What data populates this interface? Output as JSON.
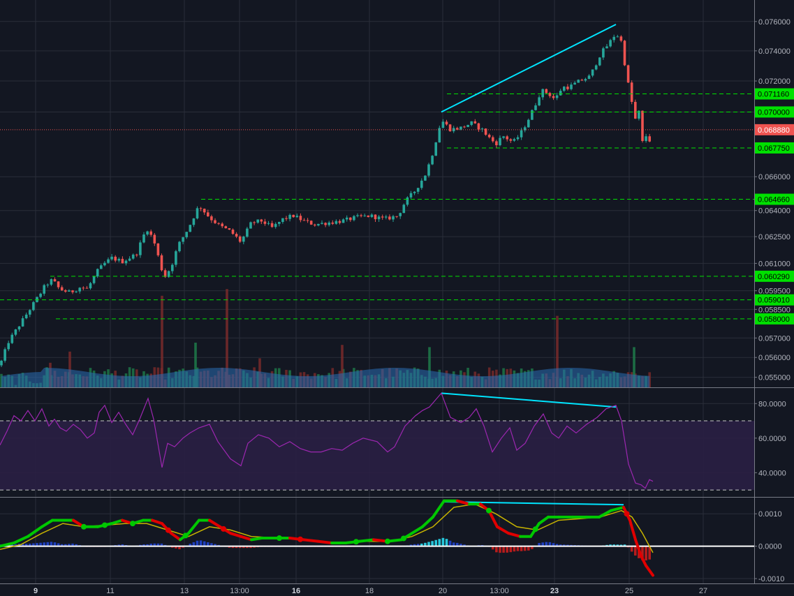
{
  "chart_data": [
    {
      "type": "candlestick",
      "panel": "price",
      "y_ticks": [
        "0.076000",
        "0.074000",
        "0.072000",
        "0.070000",
        "0.066000",
        "0.064000",
        "0.062500",
        "0.061000",
        "0.059500",
        "0.058500",
        "0.057000",
        "0.056000",
        "0.055000"
      ],
      "y_tick_values": [
        0.076,
        0.074,
        0.072,
        0.07,
        0.066,
        0.064,
        0.0625,
        0.061,
        0.0595,
        0.0585,
        0.057,
        0.056,
        0.055
      ],
      "scale": "log",
      "ylim": [
        0.0545,
        0.0775
      ],
      "close_path": [
        [
          0,
          0.0556
        ],
        [
          12,
          0.0568
        ],
        [
          30,
          0.0578
        ],
        [
          55,
          0.0592
        ],
        [
          65,
          0.0598
        ],
        [
          75,
          0.0601
        ],
        [
          85,
          0.0596
        ],
        [
          100,
          0.0594
        ],
        [
          115,
          0.0597
        ],
        [
          125,
          0.0596
        ],
        [
          140,
          0.0606
        ],
        [
          150,
          0.061
        ],
        [
          160,
          0.0613
        ],
        [
          175,
          0.0611
        ],
        [
          195,
          0.0615
        ],
        [
          210,
          0.063
        ],
        [
          220,
          0.0623
        ],
        [
          235,
          0.0602
        ],
        [
          245,
          0.0608
        ],
        [
          255,
          0.062
        ],
        [
          270,
          0.063
        ],
        [
          285,
          0.0643
        ],
        [
          300,
          0.0636
        ],
        [
          315,
          0.0631
        ],
        [
          330,
          0.0628
        ],
        [
          345,
          0.0622
        ],
        [
          360,
          0.0633
        ],
        [
          375,
          0.0634
        ],
        [
          390,
          0.063
        ],
        [
          405,
          0.0635
        ],
        [
          420,
          0.0637
        ],
        [
          435,
          0.0634
        ],
        [
          450,
          0.0632
        ],
        [
          470,
          0.0633
        ],
        [
          490,
          0.0634
        ],
        [
          510,
          0.0636
        ],
        [
          530,
          0.0637
        ],
        [
          550,
          0.0635
        ],
        [
          570,
          0.0637
        ],
        [
          580,
          0.0645
        ],
        [
          595,
          0.0652
        ],
        [
          610,
          0.0662
        ],
        [
          620,
          0.0675
        ],
        [
          632,
          0.0695
        ],
        [
          645,
          0.0689
        ],
        [
          660,
          0.069
        ],
        [
          675,
          0.0693
        ],
        [
          690,
          0.0689
        ],
        [
          700,
          0.0684
        ],
        [
          710,
          0.068
        ],
        [
          720,
          0.0685
        ],
        [
          735,
          0.0681
        ],
        [
          745,
          0.0686
        ],
        [
          755,
          0.0694
        ],
        [
          765,
          0.0703
        ],
        [
          775,
          0.0714
        ],
        [
          785,
          0.0712
        ],
        [
          795,
          0.0708
        ],
        [
          805,
          0.0716
        ],
        [
          815,
          0.0716
        ],
        [
          830,
          0.072
        ],
        [
          845,
          0.0723
        ],
        [
          860,
          0.0738
        ],
        [
          872,
          0.0745
        ],
        [
          882,
          0.0752
        ],
        [
          890,
          0.0746
        ],
        [
          896,
          0.0727
        ],
        [
          902,
          0.0712
        ],
        [
          910,
          0.0695
        ],
        [
          915,
          0.07
        ],
        [
          920,
          0.0681
        ],
        [
          925,
          0.0685
        ],
        [
          930,
          0.0682
        ],
        [
          935,
          0.0688
        ]
      ],
      "volume_spikes": [
        [
          67,
          0.9
        ],
        [
          72,
          1.1
        ],
        [
          100,
          1.6
        ],
        [
          232,
          4.1
        ],
        [
          280,
          2.0
        ],
        [
          325,
          4.4
        ],
        [
          372,
          1.3
        ],
        [
          490,
          1.9
        ],
        [
          615,
          1.8
        ],
        [
          798,
          3.2
        ],
        [
          908,
          1.8
        ]
      ],
      "price_lines": [
        {
          "label": "0.071160",
          "value": 0.07116,
          "x_from": 640
        },
        {
          "label": "0.070000",
          "value": 0.07,
          "x_from": 640
        },
        {
          "label": "0.067750",
          "value": 0.06775,
          "x_from": 640
        },
        {
          "label": "0.064660",
          "value": 0.06466,
          "x_from": 288
        },
        {
          "label": "0.060290",
          "value": 0.06029,
          "x_from": 72
        },
        {
          "label": "0.059010",
          "value": 0.05901,
          "x_from": 0
        },
        {
          "label": "0.058000",
          "value": 0.058,
          "x_from": 80
        }
      ],
      "current_price": {
        "label": "0.068880",
        "value": 0.06888
      },
      "trend_line": {
        "from": [
          632,
          0.07
        ],
        "to": [
          882,
          0.0758
        ]
      }
    },
    {
      "type": "line",
      "panel": "rsi",
      "y_ticks": [
        "80.0000",
        "60.0000",
        "40.0000"
      ],
      "y_tick_values": [
        80,
        60,
        40
      ],
      "ylim": [
        26,
        89
      ],
      "bands": [
        70,
        30
      ],
      "values": [
        [
          0,
          56
        ],
        [
          10,
          64
        ],
        [
          20,
          73
        ],
        [
          30,
          70
        ],
        [
          40,
          76
        ],
        [
          50,
          70
        ],
        [
          60,
          77
        ],
        [
          70,
          67
        ],
        [
          78,
          71
        ],
        [
          86,
          66
        ],
        [
          95,
          64
        ],
        [
          105,
          68
        ],
        [
          115,
          65
        ],
        [
          125,
          60
        ],
        [
          135,
          63
        ],
        [
          142,
          75
        ],
        [
          150,
          79
        ],
        [
          160,
          69
        ],
        [
          170,
          75
        ],
        [
          180,
          68
        ],
        [
          190,
          62
        ],
        [
          200,
          71
        ],
        [
          212,
          83
        ],
        [
          220,
          71
        ],
        [
          232,
          43
        ],
        [
          240,
          57
        ],
        [
          250,
          55
        ],
        [
          262,
          60
        ],
        [
          272,
          63
        ],
        [
          285,
          66
        ],
        [
          300,
          68
        ],
        [
          312,
          58
        ],
        [
          330,
          48
        ],
        [
          345,
          44
        ],
        [
          355,
          57
        ],
        [
          370,
          62
        ],
        [
          385,
          60
        ],
        [
          400,
          55
        ],
        [
          415,
          58
        ],
        [
          430,
          54
        ],
        [
          445,
          52
        ],
        [
          460,
          52
        ],
        [
          475,
          54
        ],
        [
          490,
          53
        ],
        [
          505,
          57
        ],
        [
          520,
          60
        ],
        [
          540,
          58
        ],
        [
          555,
          52
        ],
        [
          565,
          55
        ],
        [
          580,
          67
        ],
        [
          595,
          73
        ],
        [
          605,
          76
        ],
        [
          615,
          78
        ],
        [
          632,
          86
        ],
        [
          645,
          72
        ],
        [
          660,
          69
        ],
        [
          672,
          72
        ],
        [
          682,
          77
        ],
        [
          693,
          67
        ],
        [
          705,
          52
        ],
        [
          718,
          60
        ],
        [
          730,
          66
        ],
        [
          740,
          53
        ],
        [
          752,
          57
        ],
        [
          765,
          67
        ],
        [
          778,
          74
        ],
        [
          790,
          63
        ],
        [
          800,
          60
        ],
        [
          812,
          67
        ],
        [
          825,
          63
        ],
        [
          840,
          68
        ],
        [
          855,
          72
        ],
        [
          868,
          77
        ],
        [
          882,
          79
        ],
        [
          890,
          70
        ],
        [
          900,
          45
        ],
        [
          910,
          34
        ],
        [
          918,
          33
        ],
        [
          924,
          31
        ],
        [
          930,
          36
        ],
        [
          935,
          35
        ]
      ],
      "divergence_line": {
        "from": [
          632,
          86
        ],
        "to": [
          882,
          78
        ]
      }
    },
    {
      "type": "macd",
      "panel": "macd",
      "y_ticks": [
        "0.0010",
        "0.0000",
        "-0.0010"
      ],
      "y_tick_values": [
        0.001,
        0,
        -0.001
      ],
      "ylim": [
        -0.00115,
        0.0015
      ],
      "macd_line": [
        [
          0,
          0.0
        ],
        [
          20,
          0.0001
        ],
        [
          40,
          0.0003
        ],
        [
          60,
          0.0006
        ],
        [
          75,
          0.0008
        ],
        [
          90,
          0.0008
        ],
        [
          105,
          0.0008
        ],
        [
          120,
          0.0006
        ],
        [
          140,
          0.0006
        ],
        [
          160,
          0.0007
        ],
        [
          175,
          0.0008
        ],
        [
          190,
          0.0007
        ],
        [
          205,
          0.0008
        ],
        [
          218,
          0.0008
        ],
        [
          232,
          0.0007
        ],
        [
          245,
          0.0004
        ],
        [
          258,
          0.0002
        ],
        [
          270,
          0.0004
        ],
        [
          285,
          0.0008
        ],
        [
          300,
          0.0008
        ],
        [
          315,
          0.0006
        ],
        [
          330,
          0.0004
        ],
        [
          345,
          0.0003
        ],
        [
          360,
          0.0002
        ],
        [
          375,
          0.00025
        ],
        [
          395,
          0.00025
        ],
        [
          415,
          0.00025
        ],
        [
          435,
          0.0002
        ],
        [
          455,
          0.00015
        ],
        [
          475,
          0.0001
        ],
        [
          495,
          0.0001
        ],
        [
          515,
          0.00015
        ],
        [
          535,
          0.0002
        ],
        [
          555,
          0.00015
        ],
        [
          575,
          0.0002
        ],
        [
          590,
          0.0004
        ],
        [
          605,
          0.0006
        ],
        [
          620,
          0.0009
        ],
        [
          636,
          0.0014
        ],
        [
          655,
          0.0014
        ],
        [
          672,
          0.0013
        ],
        [
          688,
          0.0013
        ],
        [
          700,
          0.0011
        ],
        [
          712,
          0.0006
        ],
        [
          728,
          0.0004
        ],
        [
          745,
          0.0003
        ],
        [
          760,
          0.0003
        ],
        [
          772,
          0.0007
        ],
        [
          785,
          0.0009
        ],
        [
          800,
          0.0009
        ],
        [
          820,
          0.0009
        ],
        [
          840,
          0.0009
        ],
        [
          858,
          0.0009
        ],
        [
          875,
          0.0011
        ],
        [
          893,
          0.0012
        ],
        [
          902,
          0.0008
        ],
        [
          910,
          0.0002
        ],
        [
          918,
          -0.0003
        ],
        [
          925,
          -0.0006
        ],
        [
          935,
          -0.0009
        ]
      ],
      "signal_line": [
        [
          0,
          -0.0001
        ],
        [
          30,
          5e-05
        ],
        [
          60,
          0.0004
        ],
        [
          90,
          0.0007
        ],
        [
          120,
          0.0006
        ],
        [
          150,
          0.00065
        ],
        [
          180,
          0.0007
        ],
        [
          210,
          0.0007
        ],
        [
          240,
          0.0005
        ],
        [
          270,
          0.0003
        ],
        [
          300,
          0.0006
        ],
        [
          330,
          0.0005
        ],
        [
          360,
          0.0003
        ],
        [
          400,
          0.00025
        ],
        [
          440,
          0.0002
        ],
        [
          480,
          0.0001
        ],
        [
          520,
          0.00015
        ],
        [
          560,
          0.00015
        ],
        [
          590,
          0.0003
        ],
        [
          620,
          0.0006
        ],
        [
          650,
          0.0012
        ],
        [
          680,
          0.0013
        ],
        [
          710,
          0.001
        ],
        [
          740,
          0.0006
        ],
        [
          770,
          0.0005
        ],
        [
          800,
          0.0008
        ],
        [
          830,
          0.00085
        ],
        [
          860,
          0.0009
        ],
        [
          890,
          0.0011
        ],
        [
          905,
          0.0009
        ],
        [
          920,
          0.0004
        ],
        [
          935,
          -0.0002
        ]
      ],
      "divergence_line": {
        "from": [
          636,
          0.00137
        ],
        "to": [
          893,
          0.00128
        ]
      }
    }
  ],
  "x_axis": {
    "labels": [
      {
        "text": "9",
        "x": 51,
        "bold": true
      },
      {
        "text": "11",
        "x": 158,
        "bold": false
      },
      {
        "text": "13",
        "x": 264,
        "bold": false
      },
      {
        "text": "13:00",
        "x": 343,
        "bold": false
      },
      {
        "text": "16",
        "x": 424,
        "bold": true
      },
      {
        "text": "18",
        "x": 529,
        "bold": false
      },
      {
        "text": "20",
        "x": 634,
        "bold": false
      },
      {
        "text": "13:00",
        "x": 715,
        "bold": false
      },
      {
        "text": "23",
        "x": 794,
        "bold": true
      },
      {
        "text": "25",
        "x": 901,
        "bold": false
      },
      {
        "text": "27",
        "x": 1007,
        "bold": false
      }
    ]
  },
  "colors": {
    "background": "#131722",
    "grid": "#2a2e39",
    "up": "#26a69a",
    "down": "#ef5350",
    "level_line": "#00e000",
    "level_badge": "#00e000",
    "current_badge": "#ef5350",
    "trend": "#00e5ff",
    "rsi": "#9c27b0",
    "rsi_band": "#2a1f44",
    "macd_up": "#00c800",
    "macd_down": "#e00000",
    "signal": "#c8b400"
  }
}
